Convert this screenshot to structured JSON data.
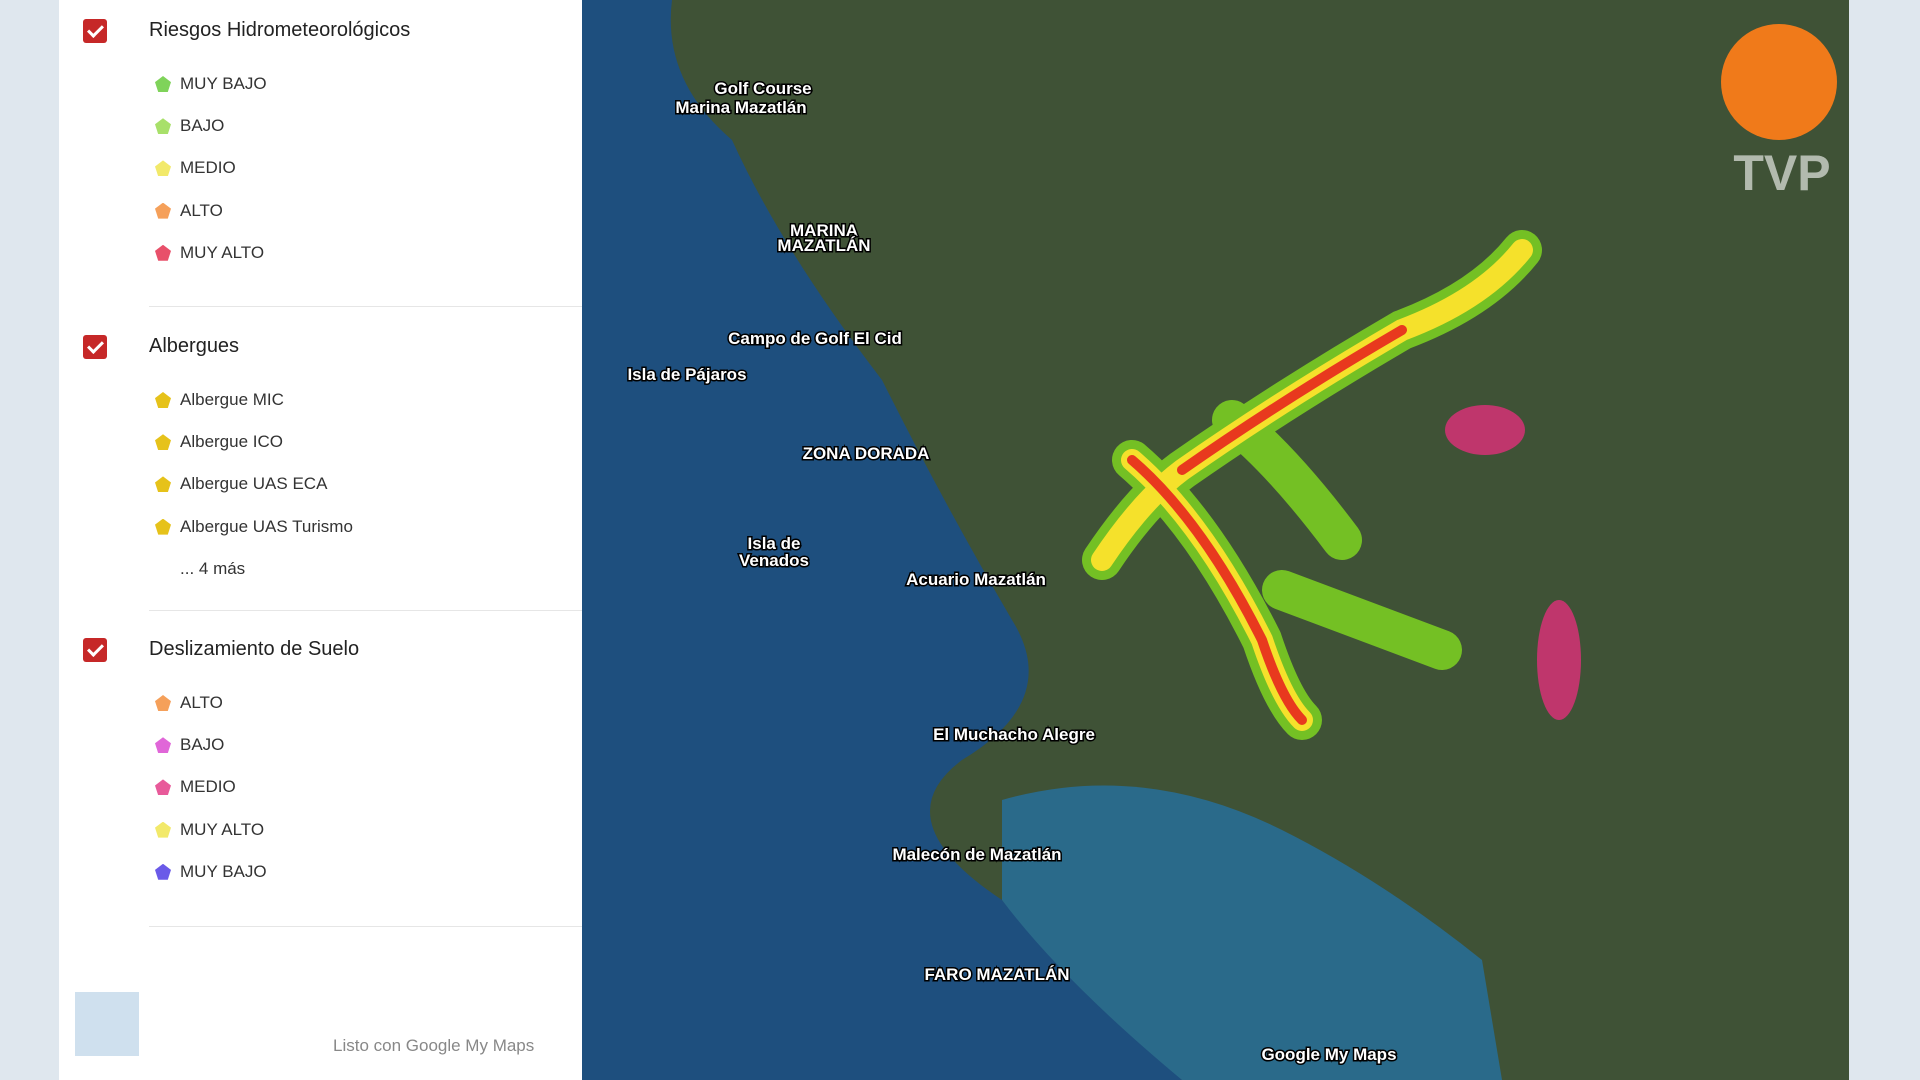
{
  "panel": {
    "layers": [
      {
        "title": "Riesgos Hidrometeorológicos",
        "items": [
          {
            "label": "MUY BAJO",
            "color": "#7fd35a"
          },
          {
            "label": "BAJO",
            "color": "#a8e06a"
          },
          {
            "label": "MEDIO",
            "color": "#f2e96a"
          },
          {
            "label": "ALTO",
            "color": "#f5a05a"
          },
          {
            "label": "MUY ALTO",
            "color": "#e8506a"
          }
        ]
      },
      {
        "title": "Albergues",
        "items": [
          {
            "label": "Albergue MIC",
            "color": "#e6c21a"
          },
          {
            "label": "Albergue ICO",
            "color": "#e6c21a"
          },
          {
            "label": "Albergue UAS ECA",
            "color": "#e6c21a"
          },
          {
            "label": "Albergue UAS Turismo",
            "color": "#e6c21a"
          }
        ],
        "more": "... 4 más"
      },
      {
        "title": "Deslizamiento de Suelo",
        "items": [
          {
            "label": "ALTO",
            "color": "#f5a05a"
          },
          {
            "label": "BAJO",
            "color": "#e066d8"
          },
          {
            "label": "MEDIO",
            "color": "#e85a9a"
          },
          {
            "label": "MUY ALTO",
            "color": "#f2e96a"
          },
          {
            "label": "MUY BAJO",
            "color": "#6a5ae8"
          }
        ]
      }
    ],
    "footer": "Listo con Google My Maps"
  },
  "map": {
    "labels": [
      "Golf Course",
      "Marina Mazatlán",
      "MARINA",
      "MAZATLÁN",
      "Campo de Golf El Cid",
      "Isla de Pájaros",
      "ZONA DORADA",
      "Isla de",
      "Venados",
      "Acuario Mazatlán",
      "El Muchacho Alegre",
      "Malecón de Mazatlán",
      "FARO MAZATLÁN"
    ],
    "logo": "Google My Maps",
    "watermark": "TVP"
  }
}
